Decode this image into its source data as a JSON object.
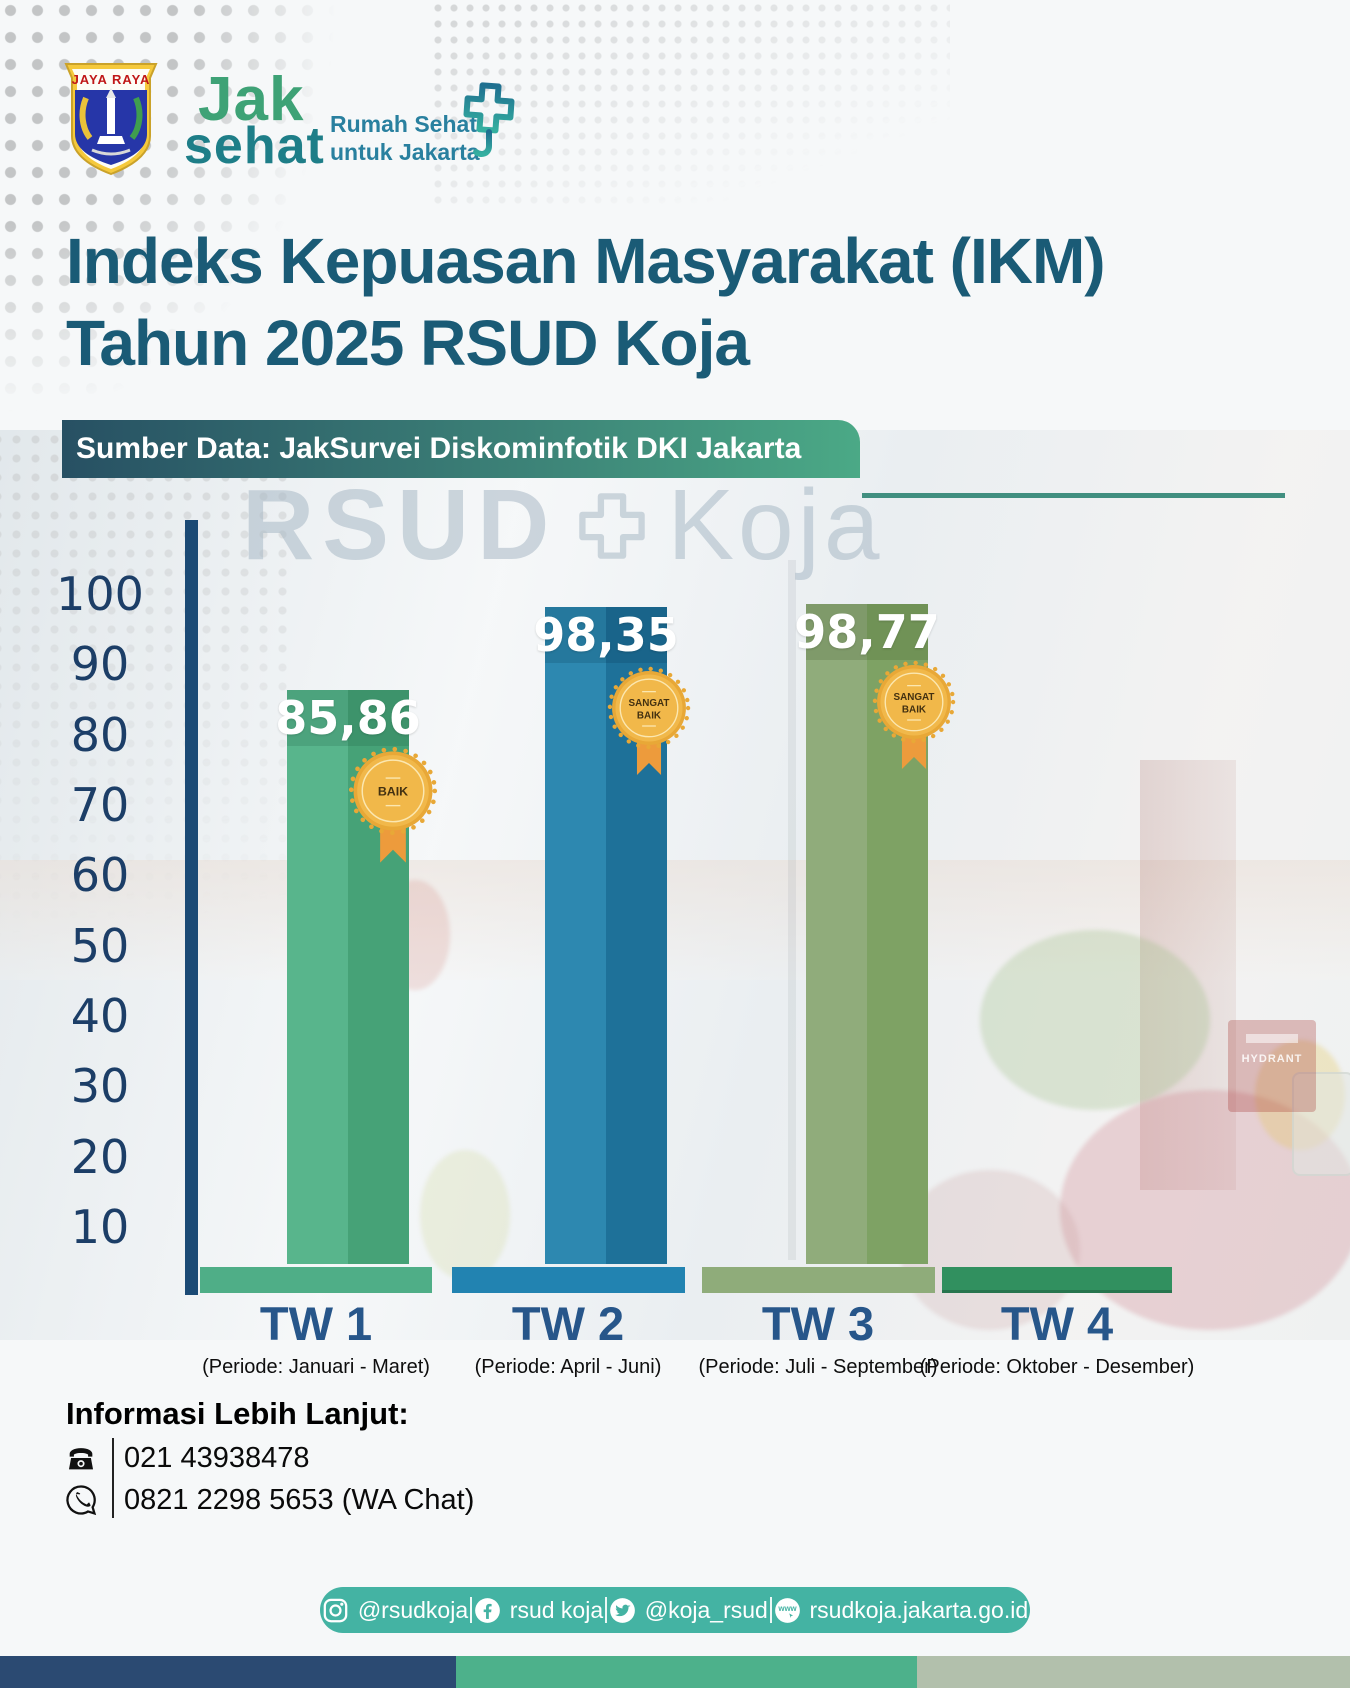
{
  "header": {
    "emblem_motto": "JAYA RAYA",
    "logo_line1": "Jak",
    "logo_line2": "sehat",
    "tagline_line1": "Rumah Sehat",
    "tagline_line2": "untuk Jakarta"
  },
  "title": {
    "line1": "Indeks Kepuasan Masyarakat (IKM)",
    "line2": "Tahun 2025 RSUD Koja"
  },
  "source_banner": "Sumber Data: JakSurvei Diskominfotik DKI Jakarta",
  "watermark": {
    "left": "RSUD",
    "right": "Koja"
  },
  "chart_data": {
    "type": "bar",
    "title": "Indeks Kepuasan Masyarakat (IKM) Tahun 2025 RSUD Koja",
    "categories": [
      "TW 1",
      "TW 2",
      "TW 3",
      "TW 4"
    ],
    "periods": [
      "(Periode: Januari - Maret)",
      "(Periode: April - Juni)",
      "(Periode: Juli - September)",
      "(Periode: Oktober - Desember)"
    ],
    "values": [
      85.86,
      98.35,
      98.77,
      null
    ],
    "value_labels": [
      "85,86",
      "98,35",
      "98,77",
      ""
    ],
    "badges": [
      [
        "BAIK"
      ],
      [
        "SANGAT",
        "BAIK"
      ],
      [
        "SANGAT",
        "BAIK"
      ],
      []
    ],
    "y_ticks": [
      "100",
      "90",
      "80",
      "70",
      "60",
      "50",
      "40",
      "30",
      "20",
      "10"
    ],
    "ylim": [
      0,
      100
    ],
    "grid": false,
    "legend": false,
    "bar_colors": [
      {
        "left": "#58b58c",
        "right": "#46a277",
        "base": "#4fae87"
      },
      {
        "left": "#2d88b0",
        "right": "#1e7199",
        "base": "#2283b1"
      },
      {
        "left": "#90ac7b",
        "right": "#7ea264",
        "base": "#8fac7a"
      },
      {
        "left": null,
        "right": null,
        "base": "#31905f"
      }
    ],
    "badge_color": "#e8a837",
    "axis_color": "#1b4a75"
  },
  "background": {
    "hydrant_label": "HYDRANT"
  },
  "contact": {
    "heading": "Informasi Lebih Lanjut:",
    "phone": "021 43938478",
    "whatsapp": "0821 2298 5653 (WA Chat)"
  },
  "footer": {
    "instagram": "@rsudkoja",
    "facebook": "rsud koja",
    "twitter": "@koja_rsud",
    "website": "rsudkoja.jakarta.go.id"
  }
}
